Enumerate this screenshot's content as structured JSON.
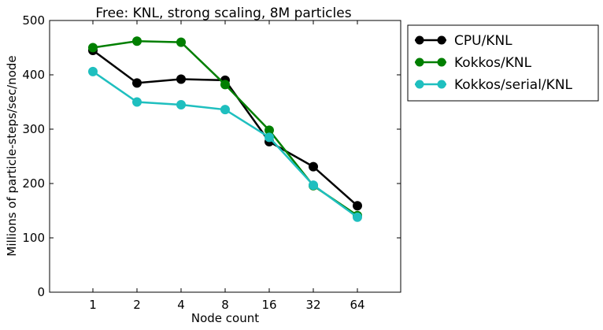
{
  "chart_data": {
    "type": "line",
    "title": "Free: KNL, strong scaling, 8M particles",
    "xlabel": "Node count",
    "ylabel": "Millions of particle-steps/sec/node",
    "categories": [
      "1",
      "2",
      "4",
      "8",
      "16",
      "32",
      "64"
    ],
    "ylim": [
      0,
      500
    ],
    "yticks": [
      0,
      100,
      200,
      300,
      400,
      500
    ],
    "grid": false,
    "legend_position": "outside-right-top",
    "series": [
      {
        "name": "CPU/KNL",
        "color": "#000000",
        "values": [
          445,
          385,
          392,
          390,
          277,
          231,
          159
        ]
      },
      {
        "name": "Kokkos/KNL",
        "color": "#007f00",
        "values": [
          450,
          462,
          460,
          382,
          298,
          196,
          141
        ]
      },
      {
        "name": "Kokkos/serial/KNL",
        "color": "#1fbfbf",
        "values": [
          406,
          350,
          345,
          336,
          285,
          197,
          138
        ]
      }
    ]
  }
}
